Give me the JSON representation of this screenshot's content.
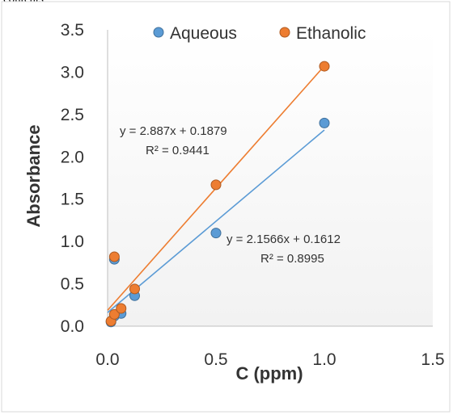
{
  "top_fragment": "contents",
  "chart_data": {
    "type": "scatter",
    "xlabel": "C (ppm)",
    "ylabel": "Absorbance",
    "xlim": [
      0,
      1.5
    ],
    "ylim": [
      0,
      3.5
    ],
    "x_ticks": [
      "0.0",
      "0.5",
      "1.0",
      "1.5"
    ],
    "y_ticks": [
      "0.0",
      "0.5",
      "1.0",
      "1.5",
      "2.0",
      "2.5",
      "3.0",
      "3.5"
    ],
    "legend_position": "top",
    "series": [
      {
        "name": "Aqueous",
        "color": "#5B9BD5",
        "x": [
          0.0156,
          0.0313,
          0.0625,
          0.125,
          0.5,
          1.0,
          0.0313
        ],
        "y": [
          0.05,
          0.12,
          0.15,
          0.36,
          1.1,
          2.4,
          0.79
        ],
        "trendline": {
          "slope": 2.1566,
          "intercept": 0.1612,
          "equation": "y = 2.1566x + 0.1612",
          "r2": "R² = 0.8995"
        }
      },
      {
        "name": "Ethanolic",
        "color": "#ED7D31",
        "x": [
          0.0156,
          0.0313,
          0.0625,
          0.125,
          0.5,
          1.0,
          0.0313
        ],
        "y": [
          0.06,
          0.14,
          0.21,
          0.44,
          1.67,
          3.07,
          0.82
        ],
        "trendline": {
          "slope": 2.887,
          "intercept": 0.1879,
          "equation": "y = 2.887x + 0.1879",
          "r2": "R² = 0.9441"
        }
      }
    ]
  }
}
